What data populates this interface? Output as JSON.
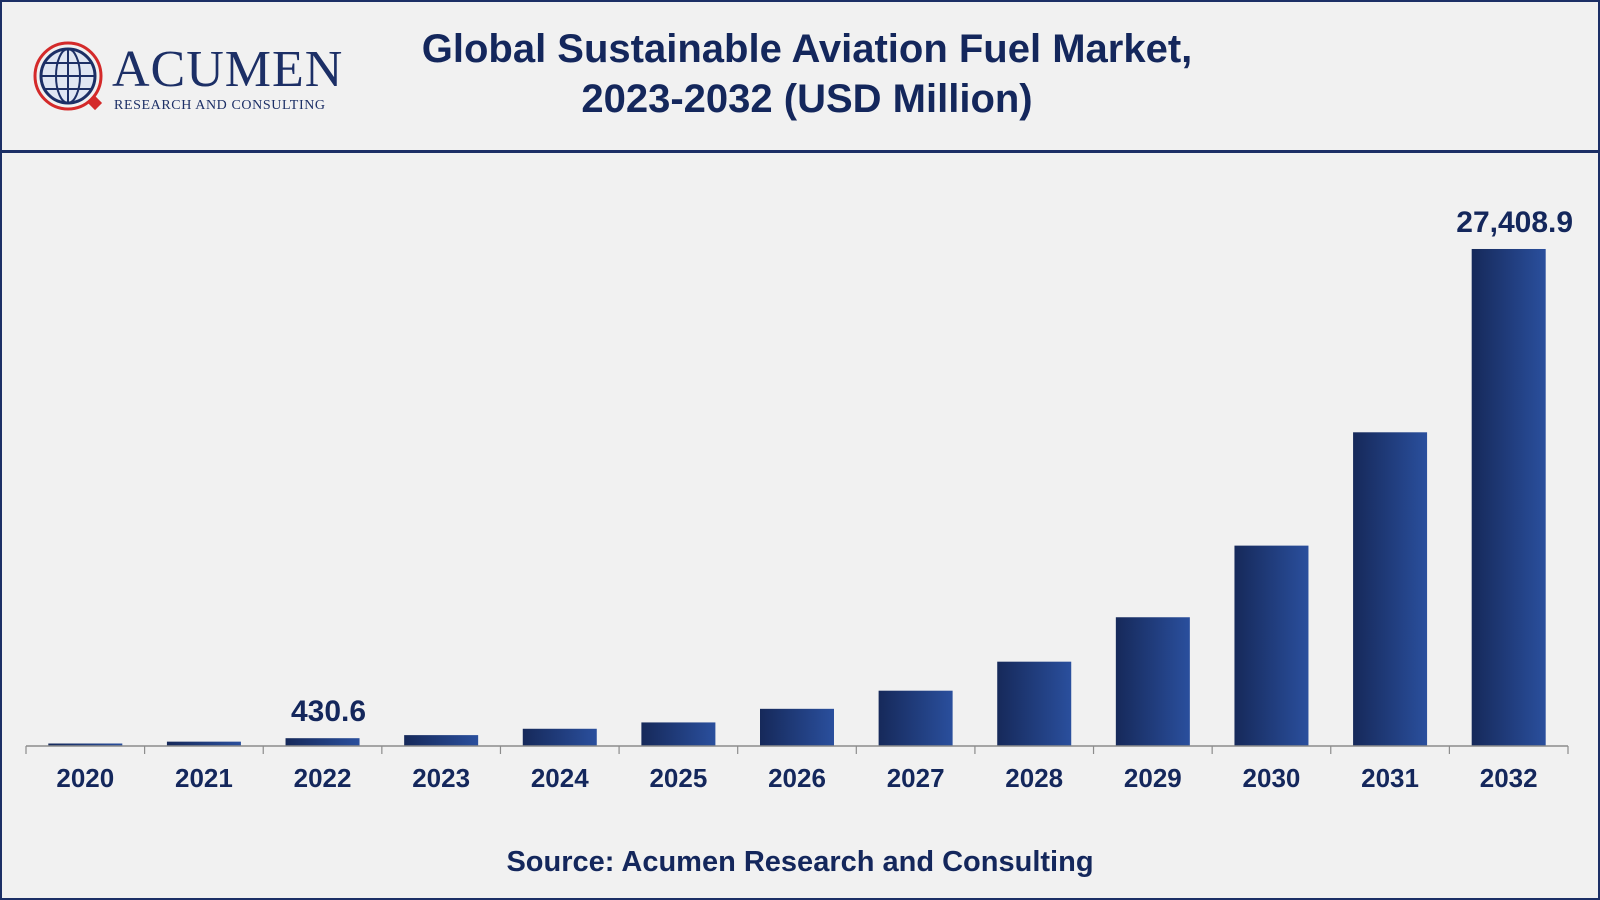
{
  "header": {
    "logo_text": "ACUMEN",
    "logo_tagline": "RESEARCH AND CONSULTING",
    "title_line1": "Global Sustainable Aviation Fuel Market,",
    "title_line2": "2023-2032 (USD Million)"
  },
  "source": "Source: Acumen Research and Consulting",
  "colors": {
    "bar_dark": "#16295a",
    "bar_light": "#2a4f9d",
    "text": "#14275c",
    "frame": "#1c2f66",
    "logo_red": "#d42a2a"
  },
  "chart_data": {
    "type": "bar",
    "title": "Global Sustainable Aviation Fuel Market, 2023-2032 (USD Million)",
    "categories": [
      "2020",
      "2021",
      "2022",
      "2023",
      "2024",
      "2025",
      "2026",
      "2027",
      "2028",
      "2029",
      "2030",
      "2031",
      "2032"
    ],
    "values": [
      120,
      240,
      430.6,
      600,
      950,
      1300,
      2050,
      3050,
      4650,
      7100,
      11050,
      17300,
      27408.9
    ],
    "data_labels": [
      "",
      "",
      "430.6",
      "",
      "",
      "",
      "",
      "",
      "",
      "",
      "",
      "",
      "27,408.9"
    ],
    "ylim": [
      0,
      30000
    ],
    "xlabel": "",
    "ylabel": "",
    "grid": false,
    "legend": "none"
  }
}
